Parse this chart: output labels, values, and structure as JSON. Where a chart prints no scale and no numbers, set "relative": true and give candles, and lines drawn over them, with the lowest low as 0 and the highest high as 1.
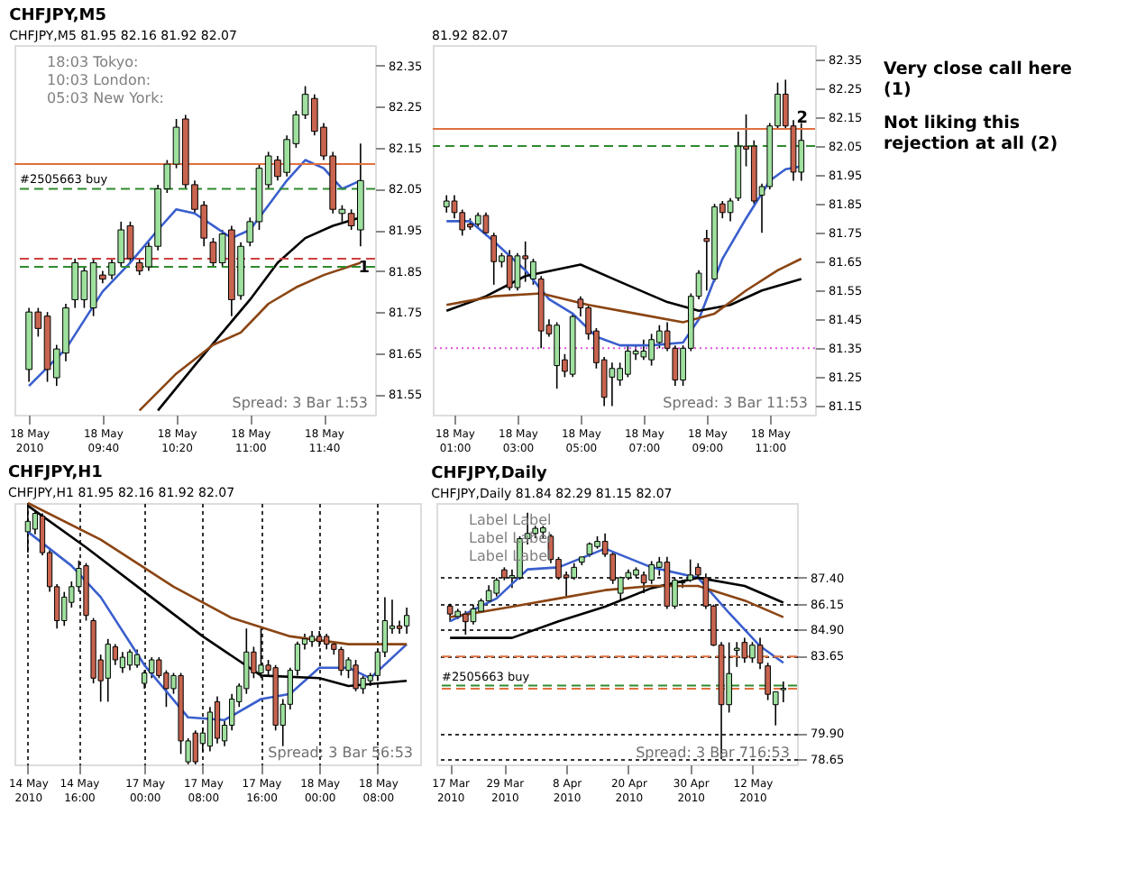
{
  "chart_data": [
    {
      "type": "candlestick",
      "title": "CHFJPY,M5",
      "subtitle": "CHFJPY,M5 81.95 82.16 81.92 82.07",
      "categories": [
        "18 May 2010",
        null,
        null,
        null,
        null,
        null,
        null,
        null,
        "18 May 09:40",
        null,
        null,
        null,
        null,
        null,
        null,
        null,
        "18 May 10:20",
        null,
        null,
        null,
        null,
        null,
        null,
        null,
        "18 May 11:00",
        null,
        null,
        null,
        null,
        null,
        null,
        null,
        "18 May 11:40",
        null,
        null,
        null,
        null
      ],
      "ohlc": [
        [
          81.61,
          81.76,
          81.58,
          81.75
        ],
        [
          81.75,
          81.76,
          81.69,
          81.71
        ],
        [
          81.74,
          81.75,
          81.58,
          81.61
        ],
        [
          81.59,
          81.67,
          81.57,
          81.66
        ],
        [
          81.65,
          81.77,
          81.63,
          81.76
        ],
        [
          81.78,
          81.88,
          81.76,
          81.87
        ],
        [
          81.78,
          81.86,
          81.76,
          81.85
        ],
        [
          81.76,
          81.88,
          81.74,
          81.87
        ],
        [
          81.84,
          81.85,
          81.82,
          81.83
        ],
        [
          81.84,
          81.88,
          81.83,
          81.87
        ],
        [
          81.87,
          81.97,
          81.86,
          81.95
        ],
        [
          81.96,
          81.97,
          81.87,
          81.88
        ],
        [
          81.87,
          81.88,
          81.84,
          81.85
        ],
        [
          81.86,
          81.92,
          81.85,
          81.91
        ],
        [
          81.91,
          82.06,
          81.9,
          82.05
        ],
        [
          82.05,
          82.12,
          82.04,
          82.11
        ],
        [
          82.11,
          82.22,
          82.1,
          82.2
        ],
        [
          82.22,
          82.23,
          82.05,
          82.06
        ],
        [
          82.06,
          82.07,
          81.99,
          82.0
        ],
        [
          82.01,
          82.02,
          81.91,
          81.93
        ],
        [
          81.92,
          81.93,
          81.86,
          81.87
        ],
        [
          81.87,
          81.95,
          81.86,
          81.94
        ],
        [
          81.95,
          81.96,
          81.74,
          81.78
        ],
        [
          81.79,
          81.92,
          81.78,
          81.91
        ],
        [
          81.92,
          81.98,
          81.91,
          81.97
        ],
        [
          81.97,
          82.11,
          81.95,
          82.1
        ],
        [
          82.06,
          82.14,
          82.05,
          82.13
        ],
        [
          82.12,
          82.13,
          82.07,
          82.08
        ],
        [
          82.09,
          82.18,
          82.08,
          82.17
        ],
        [
          82.16,
          82.24,
          82.15,
          82.23
        ],
        [
          82.23,
          82.3,
          82.22,
          82.28
        ],
        [
          82.27,
          82.28,
          82.18,
          82.19
        ],
        [
          82.2,
          82.21,
          82.12,
          82.13
        ],
        [
          82.13,
          82.14,
          81.99,
          82.0
        ],
        [
          81.99,
          82.01,
          81.97,
          82.0
        ],
        [
          81.99,
          82.0,
          81.95,
          81.96
        ],
        [
          81.95,
          82.16,
          81.91,
          82.07
        ]
      ],
      "series": [
        {
          "type": "line",
          "color": "#3a5fcd",
          "values": [
            81.57,
            null,
            null,
            null,
            81.66,
            null,
            null,
            null,
            81.8,
            null,
            null,
            81.87,
            null,
            null,
            81.95,
            null,
            82.0,
            null,
            81.99,
            null,
            81.96,
            null,
            81.93,
            null,
            81.95,
            null,
            82.01,
            null,
            82.07,
            null,
            82.12,
            null,
            82.1,
            null,
            82.05,
            null,
            82.07
          ]
        },
        {
          "type": "line",
          "color": "#000000",
          "values": [
            null,
            null,
            null,
            null,
            null,
            null,
            null,
            null,
            null,
            null,
            null,
            null,
            null,
            null,
            81.51,
            null,
            null,
            null,
            81.62,
            null,
            null,
            81.7,
            null,
            null,
            81.78,
            null,
            null,
            81.87,
            null,
            null,
            81.93,
            null,
            null,
            81.96,
            null,
            null,
            81.98
          ]
        },
        {
          "type": "line",
          "color": "#8b4513",
          "values": [
            null,
            null,
            null,
            null,
            null,
            null,
            null,
            null,
            null,
            null,
            null,
            null,
            81.51,
            null,
            null,
            null,
            81.6,
            null,
            null,
            null,
            81.67,
            null,
            null,
            81.7,
            null,
            null,
            81.77,
            null,
            null,
            81.81,
            null,
            null,
            81.84,
            null,
            null,
            null,
            81.87
          ]
        }
      ],
      "ylim": [
        81.5,
        82.4
      ],
      "yticks": [
        81.55,
        81.65,
        81.75,
        81.85,
        81.95,
        82.05,
        82.15,
        82.25,
        82.35
      ],
      "ref_lines": [
        {
          "axis": "y",
          "value": 82.11,
          "color": "#e07040",
          "line_style": "solid"
        },
        {
          "axis": "y",
          "value": 82.05,
          "label": "#2505663 buy",
          "color": "#2e8b2e",
          "line_style": "dashed"
        },
        {
          "axis": "y",
          "value": 81.88,
          "color": "#d04040",
          "line_style": "dashed"
        },
        {
          "axis": "y",
          "value": 81.86,
          "color": "#2e8b2e",
          "line_style": "dashed"
        }
      ],
      "annotations": [
        "18:03 Tokyo:",
        "10:03 London:",
        "05:03 New York:",
        {
          "text": "1",
          "y": 81.86
        },
        "Spread: 3   Bar  1:53"
      ]
    },
    {
      "type": "candlestick",
      "subtitle": "81.92 82.07",
      "categories": [
        null,
        "18 May 01:00",
        null,
        null,
        null,
        null,
        null,
        null,
        null,
        "18 May 03:00",
        null,
        null,
        null,
        null,
        null,
        null,
        null,
        "18 May 05:00",
        null,
        null,
        null,
        null,
        null,
        null,
        null,
        "18 May 07:00",
        null,
        null,
        null,
        null,
        null,
        null,
        null,
        "18 May 09:00",
        null,
        null,
        null,
        null,
        null,
        null,
        null,
        "18 May 11:00",
        null,
        null,
        null,
        null
      ],
      "ohlc": [
        [
          81.84,
          81.88,
          81.82,
          81.86
        ],
        [
          81.86,
          81.88,
          81.8,
          81.82
        ],
        [
          81.82,
          81.83,
          81.74,
          81.76
        ],
        [
          81.78,
          81.8,
          81.76,
          81.77
        ],
        [
          81.78,
          81.82,
          81.77,
          81.81
        ],
        [
          81.81,
          81.82,
          81.74,
          81.75
        ],
        [
          81.74,
          81.75,
          81.57,
          81.65
        ],
        [
          81.65,
          81.68,
          81.63,
          81.67
        ],
        [
          81.67,
          81.69,
          81.55,
          81.56
        ],
        [
          81.56,
          81.68,
          81.55,
          81.67
        ],
        [
          81.67,
          81.72,
          81.58,
          81.66
        ],
        [
          81.59,
          81.66,
          81.57,
          81.65
        ],
        [
          81.59,
          81.6,
          81.35,
          81.41
        ],
        [
          81.43,
          81.45,
          81.39,
          81.4
        ],
        [
          81.29,
          81.44,
          81.21,
          81.43
        ],
        [
          81.31,
          81.33,
          81.25,
          81.27
        ],
        [
          81.26,
          81.47,
          81.25,
          81.46
        ],
        [
          81.52,
          81.53,
          81.46,
          81.49
        ],
        [
          81.49,
          81.5,
          81.38,
          81.4
        ],
        [
          81.41,
          81.42,
          81.28,
          81.3
        ],
        [
          81.31,
          81.32,
          81.15,
          81.18
        ],
        [
          81.25,
          81.3,
          81.15,
          81.28
        ],
        [
          81.24,
          81.3,
          81.22,
          81.28
        ],
        [
          81.26,
          81.36,
          81.25,
          81.34
        ],
        [
          81.33,
          81.36,
          81.31,
          81.34
        ],
        [
          81.32,
          81.38,
          81.31,
          81.34
        ],
        [
          81.31,
          81.4,
          81.29,
          81.38
        ],
        [
          81.37,
          81.43,
          81.35,
          81.41
        ],
        [
          81.41,
          81.44,
          81.34,
          81.35
        ],
        [
          81.35,
          81.36,
          81.22,
          81.24
        ],
        [
          81.24,
          81.36,
          81.22,
          81.35
        ],
        [
          81.35,
          81.54,
          81.34,
          81.53
        ],
        [
          81.53,
          81.62,
          81.52,
          81.61
        ],
        [
          81.73,
          81.76,
          81.55,
          81.72
        ],
        [
          81.59,
          81.85,
          81.58,
          81.84
        ],
        [
          81.85,
          81.86,
          81.8,
          81.82
        ],
        [
          81.82,
          81.87,
          81.79,
          81.86
        ],
        [
          81.87,
          82.1,
          81.86,
          82.05
        ],
        [
          82.05,
          82.16,
          81.98,
          82.04
        ],
        [
          82.05,
          82.07,
          81.85,
          81.86
        ],
        [
          81.88,
          81.92,
          81.75,
          81.91
        ],
        [
          81.91,
          82.13,
          81.9,
          82.12
        ],
        [
          82.12,
          82.27,
          82.11,
          82.23
        ],
        [
          82.23,
          82.28,
          82.11,
          82.12
        ],
        [
          82.12,
          82.14,
          81.93,
          81.96
        ],
        [
          81.96,
          82.13,
          81.93,
          82.07
        ]
      ],
      "series": [
        {
          "type": "line",
          "color": "#3a5fcd",
          "values": [
            81.79,
            null,
            null,
            81.79,
            null,
            null,
            81.72,
            null,
            null,
            null,
            81.62,
            null,
            null,
            81.52,
            null,
            null,
            81.47,
            null,
            null,
            81.39,
            null,
            null,
            81.36,
            null,
            null,
            null,
            81.36,
            null,
            null,
            null,
            81.37,
            null,
            81.45,
            null,
            null,
            81.66,
            null,
            null,
            81.8,
            null,
            null,
            81.93,
            null,
            81.97,
            null,
            81.98
          ]
        },
        {
          "type": "line",
          "color": "#000000",
          "values": [
            81.48,
            null,
            null,
            null,
            null,
            81.53,
            null,
            null,
            null,
            null,
            81.6,
            null,
            null,
            null,
            null,
            null,
            null,
            81.64,
            null,
            null,
            null,
            null,
            81.58,
            null,
            null,
            null,
            null,
            null,
            81.51,
            null,
            null,
            null,
            81.48,
            null,
            null,
            null,
            81.5,
            null,
            null,
            null,
            81.55,
            null,
            null,
            null,
            null,
            81.59
          ]
        },
        {
          "type": "line",
          "color": "#8b4513",
          "values": [
            81.5,
            null,
            null,
            null,
            null,
            null,
            81.53,
            null,
            null,
            null,
            null,
            null,
            81.54,
            null,
            null,
            null,
            null,
            null,
            81.5,
            null,
            null,
            null,
            null,
            null,
            81.47,
            null,
            null,
            null,
            null,
            null,
            81.44,
            null,
            null,
            null,
            81.47,
            null,
            null,
            null,
            81.55,
            null,
            null,
            null,
            81.62,
            null,
            null,
            81.66
          ]
        }
      ],
      "ylim": [
        81.12,
        82.4
      ],
      "yticks": [
        81.15,
        81.25,
        81.35,
        81.45,
        81.55,
        81.65,
        81.75,
        81.85,
        81.95,
        82.05,
        82.15,
        82.25,
        82.35
      ],
      "ref_lines": [
        {
          "axis": "y",
          "value": 82.11,
          "color": "#e07040",
          "line_style": "solid"
        },
        {
          "axis": "y",
          "value": 82.05,
          "color": "#2e8b2e",
          "line_style": "dashed"
        },
        {
          "axis": "y",
          "value": 81.35,
          "color": "#e050e0",
          "line_style": "dotted"
        }
      ],
      "annotations": [
        "2",
        "Spread: 3   Bar  11:53",
        "Very close call here (1)",
        "Not liking this rejection at all (2)"
      ]
    },
    {
      "type": "candlestick",
      "title": "CHFJPY,H1",
      "subtitle": "CHFJPY,H1 81.95 82.16 81.92 82.07",
      "relative": true,
      "grid": "x",
      "categories": [
        "14 May 2010",
        null,
        null,
        null,
        null,
        null,
        null,
        "14 May 16:00",
        null,
        null,
        null,
        null,
        null,
        null,
        null,
        null,
        "17 May 00:00",
        null,
        null,
        null,
        null,
        null,
        null,
        null,
        "17 May 08:00",
        null,
        null,
        null,
        null,
        null,
        null,
        null,
        "17 May 16:00",
        null,
        null,
        null,
        null,
        null,
        null,
        null,
        "18 May 00:00",
        null,
        null,
        null,
        null,
        null,
        null,
        null,
        "18 May 08:00",
        null,
        null,
        null,
        null
      ],
      "ohlc": [
        [
          0.89,
          1.0,
          0.81,
          0.93
        ],
        [
          0.9,
          0.97,
          0.88,
          0.96
        ],
        [
          0.95,
          0.96,
          0.8,
          0.81
        ],
        [
          0.81,
          0.82,
          0.66,
          0.68
        ],
        [
          0.68,
          0.69,
          0.52,
          0.55
        ],
        [
          0.55,
          0.66,
          0.53,
          0.64
        ],
        [
          0.62,
          0.7,
          0.6,
          0.68
        ],
        [
          0.68,
          0.78,
          0.66,
          0.75
        ],
        [
          0.76,
          0.77,
          0.55,
          0.57
        ],
        [
          0.55,
          0.56,
          0.31,
          0.33
        ],
        [
          0.4,
          0.42,
          0.24,
          0.32
        ],
        [
          0.33,
          0.48,
          0.24,
          0.46
        ],
        [
          0.45,
          0.46,
          0.38,
          0.4
        ],
        [
          0.37,
          0.43,
          0.35,
          0.41
        ],
        [
          0.38,
          0.44,
          0.36,
          0.43
        ],
        [
          0.38,
          0.44,
          0.37,
          0.42
        ],
        [
          0.31,
          0.36,
          0.29,
          0.35
        ],
        [
          0.35,
          0.41,
          0.33,
          0.4
        ],
        [
          0.4,
          0.41,
          0.33,
          0.34
        ],
        [
          0.35,
          0.36,
          0.22,
          0.29
        ],
        [
          0.29,
          0.35,
          0.27,
          0.34
        ],
        [
          0.34,
          0.35,
          0.04,
          0.09
        ],
        [
          0.01,
          0.1,
          0.0,
          0.09
        ],
        [
          0.12,
          0.13,
          0.0,
          0.01
        ],
        [
          0.08,
          0.14,
          0.05,
          0.12
        ],
        [
          0.07,
          0.22,
          0.05,
          0.2
        ],
        [
          0.24,
          0.26,
          0.08,
          0.1
        ],
        [
          0.09,
          0.17,
          0.07,
          0.15
        ],
        [
          0.15,
          0.27,
          0.13,
          0.25
        ],
        [
          0.24,
          0.31,
          0.22,
          0.3
        ],
        [
          0.29,
          0.52,
          0.27,
          0.43
        ],
        [
          0.43,
          0.45,
          0.33,
          0.35
        ],
        [
          0.35,
          0.52,
          0.33,
          0.38
        ],
        [
          0.38,
          0.4,
          0.34,
          0.36
        ],
        [
          0.37,
          0.38,
          0.13,
          0.15
        ],
        [
          0.15,
          0.25,
          0.07,
          0.23
        ],
        [
          0.23,
          0.37,
          0.21,
          0.36
        ],
        [
          0.36,
          0.47,
          0.34,
          0.46
        ],
        [
          0.46,
          0.5,
          0.44,
          0.48
        ],
        [
          0.47,
          0.51,
          0.45,
          0.49
        ],
        [
          0.49,
          0.51,
          0.45,
          0.47
        ],
        [
          0.49,
          0.5,
          0.44,
          0.46
        ],
        [
          0.46,
          0.47,
          0.42,
          0.44
        ],
        [
          0.44,
          0.45,
          0.34,
          0.36
        ],
        [
          0.36,
          0.41,
          0.33,
          0.4
        ],
        [
          0.38,
          0.4,
          0.28,
          0.29
        ],
        [
          0.29,
          0.34,
          0.27,
          0.33
        ],
        [
          0.32,
          0.35,
          0.3,
          0.34
        ],
        [
          0.34,
          0.44,
          0.32,
          0.43
        ],
        [
          0.43,
          0.64,
          0.41,
          0.55
        ],
        [
          0.52,
          0.63,
          0.5,
          0.53
        ],
        [
          0.53,
          0.55,
          0.5,
          0.52
        ],
        [
          0.53,
          0.6,
          0.5,
          0.57
        ]
      ],
      "series": [
        {
          "type": "line",
          "color": "#3a5fcd",
          "values": [
            0.89,
            null,
            null,
            null,
            null,
            null,
            0.76,
            null,
            null,
            null,
            0.64,
            null,
            null,
            null,
            null,
            null,
            0.38,
            null,
            null,
            null,
            null,
            null,
            0.18,
            null,
            null,
            null,
            null,
            0.17,
            null,
            null,
            null,
            null,
            0.25,
            null,
            null,
            null,
            0.27,
            null,
            null,
            null,
            0.37,
            null,
            null,
            null,
            0.37,
            null,
            null,
            0.33,
            null,
            null,
            null,
            null,
            0.46
          ]
        },
        {
          "type": "line",
          "color": "#000000",
          "values": [
            0.99,
            null,
            null,
            null,
            null,
            null,
            null,
            null,
            0.83,
            null,
            null,
            null,
            null,
            null,
            null,
            null,
            0.66,
            null,
            null,
            null,
            null,
            null,
            null,
            null,
            0.49,
            null,
            null,
            null,
            null,
            null,
            null,
            null,
            0.34,
            null,
            null,
            null,
            null,
            null,
            null,
            null,
            0.33,
            null,
            null,
            null,
            0.3,
            null,
            null,
            null,
            null,
            null,
            null,
            null,
            0.32
          ]
        },
        {
          "type": "line",
          "color": "#8b4513",
          "values": [
            1.0,
            null,
            null,
            null,
            null,
            null,
            null,
            null,
            null,
            null,
            0.86,
            null,
            null,
            null,
            null,
            null,
            null,
            null,
            null,
            null,
            0.68,
            null,
            null,
            null,
            null,
            null,
            null,
            null,
            0.56,
            null,
            null,
            null,
            null,
            null,
            null,
            null,
            0.49,
            null,
            null,
            null,
            null,
            null,
            null,
            null,
            0.46,
            null,
            null,
            null,
            null,
            null,
            null,
            null,
            0.46
          ]
        }
      ],
      "annotations": [
        "Spread: 3   Bar  56:53"
      ]
    },
    {
      "type": "candlestick",
      "title": "CHFJPY,Daily",
      "subtitle": "CHFJPY,Daily 81.84 82.29 81.15 82.07",
      "grid": "y",
      "categories": [
        "17 Mar 2010",
        null,
        null,
        null,
        null,
        null,
        null,
        "29 Mar 2010",
        null,
        null,
        null,
        null,
        null,
        null,
        null,
        "8 Apr 2010",
        null,
        null,
        null,
        null,
        null,
        null,
        null,
        "20 Apr 2010",
        null,
        null,
        null,
        null,
        null,
        null,
        null,
        "30 Apr 2010",
        null,
        null,
        null,
        null,
        null,
        null,
        null,
        "12 May 2010",
        null,
        null,
        null,
        null
      ],
      "ohlc": [
        [
          86.03,
          86.15,
          85.28,
          85.65
        ],
        [
          85.53,
          85.9,
          85.4,
          85.78
        ],
        [
          85.65,
          85.8,
          84.65,
          85.28
        ],
        [
          85.28,
          86.1,
          85.15,
          85.9
        ],
        [
          85.78,
          86.4,
          85.7,
          86.28
        ],
        [
          86.28,
          87.03,
          86.2,
          86.78
        ],
        [
          86.65,
          87.4,
          86.5,
          87.28
        ],
        [
          87.78,
          87.9,
          87.28,
          87.4
        ],
        [
          87.4,
          87.8,
          86.9,
          87.5
        ],
        [
          87.4,
          89.4,
          87.3,
          89.28
        ],
        [
          89.28,
          90.53,
          89.0,
          89.53
        ],
        [
          89.53,
          89.9,
          89.3,
          89.78
        ],
        [
          89.6,
          89.9,
          89.3,
          89.8
        ],
        [
          89.4,
          89.5,
          88.1,
          88.28
        ],
        [
          88.28,
          88.4,
          87.3,
          87.4
        ],
        [
          87.53,
          87.7,
          86.53,
          87.4
        ],
        [
          87.4,
          88.1,
          87.3,
          87.9
        ],
        [
          88.15,
          88.4,
          88.0,
          88.4
        ],
        [
          88.53,
          89.1,
          88.4,
          89.03
        ],
        [
          88.9,
          89.4,
          88.8,
          89.15
        ],
        [
          89.15,
          89.53,
          88.4,
          88.53
        ],
        [
          88.53,
          88.65,
          87.1,
          87.28
        ],
        [
          86.65,
          87.45,
          86.28,
          87.4
        ],
        [
          87.4,
          87.8,
          87.3,
          87.65
        ],
        [
          87.53,
          87.9,
          87.4,
          87.78
        ],
        [
          87.53,
          87.7,
          86.65,
          87.15
        ],
        [
          87.28,
          88.2,
          87.1,
          88.03
        ],
        [
          87.9,
          88.4,
          87.5,
          88.15
        ],
        [
          88.15,
          88.4,
          85.9,
          86.03
        ],
        [
          86.03,
          87.4,
          85.9,
          87.28
        ],
        [
          87.15,
          87.3,
          86.9,
          87.2
        ],
        [
          87.28,
          88.28,
          87.2,
          87.53
        ],
        [
          87.9,
          88.1,
          87.4,
          87.53
        ],
        [
          87.4,
          87.6,
          85.9,
          86.03
        ],
        [
          86.03,
          86.1,
          84.1,
          84.15
        ],
        [
          84.15,
          84.3,
          78.65,
          81.28
        ],
        [
          81.28,
          84.28,
          80.9,
          82.78
        ],
        [
          83.9,
          84.3,
          83.1,
          84.0
        ],
        [
          84.28,
          84.5,
          83.3,
          83.53
        ],
        [
          83.53,
          84.3,
          83.3,
          84.15
        ],
        [
          84.15,
          84.5,
          83.0,
          83.28
        ],
        [
          83.15,
          83.3,
          81.5,
          81.78
        ],
        [
          81.28,
          81.9,
          80.28,
          81.9
        ],
        [
          82.0,
          82.4,
          81.4,
          82.07
        ]
      ],
      "series": [
        {
          "type": "line",
          "color": "#3a5fcd",
          "values": [
            85.3,
            null,
            null,
            null,
            null,
            null,
            86.4,
            null,
            null,
            null,
            87.8,
            null,
            null,
            null,
            87.9,
            null,
            null,
            null,
            null,
            null,
            88.8,
            null,
            null,
            null,
            null,
            null,
            87.9,
            null,
            null,
            null,
            null,
            null,
            87.4,
            null,
            null,
            null,
            85.7,
            null,
            null,
            null,
            84.1,
            null,
            null,
            83.3
          ]
        },
        {
          "type": "line",
          "color": "#000000",
          "values": [
            84.5,
            null,
            null,
            null,
            null,
            null,
            null,
            null,
            84.5,
            null,
            null,
            null,
            null,
            null,
            85.3,
            null,
            null,
            null,
            null,
            null,
            86.0,
            null,
            null,
            null,
            null,
            null,
            86.9,
            null,
            null,
            null,
            null,
            null,
            87.4,
            null,
            null,
            null,
            null,
            null,
            87.0,
            null,
            null,
            null,
            null,
            86.2
          ]
        },
        {
          "type": "line",
          "color": "#8b4513",
          "values": [
            85.5,
            null,
            null,
            null,
            null,
            null,
            null,
            null,
            86.0,
            null,
            null,
            null,
            null,
            null,
            86.4,
            null,
            null,
            null,
            null,
            null,
            86.8,
            null,
            null,
            null,
            null,
            null,
            87.0,
            null,
            null,
            null,
            null,
            null,
            87.0,
            null,
            null,
            null,
            null,
            null,
            86.3,
            null,
            null,
            null,
            null,
            85.5
          ]
        }
      ],
      "ylim": [
        78.4,
        91.0
      ],
      "yticks": [
        78.65,
        {
          "value": 79.9,
          "label": "79.90"
        },
        83.65,
        {
          "value": 84.9,
          "label": "84.90"
        },
        86.15,
        {
          "value": 87.4,
          "label": "87.40"
        }
      ],
      "ref_lines": [
        {
          "axis": "y",
          "value": 83.6,
          "color": "#e07040",
          "line_style": "dashed"
        },
        {
          "axis": "y",
          "value": 82.2,
          "label": "#2505663 buy",
          "color": "#2e8b2e",
          "line_style": "dashed"
        },
        {
          "axis": "y",
          "value": 82.05,
          "color": "#e07040",
          "line_style": "dashed"
        }
      ],
      "annotations": [
        "Label Label",
        "Label Label",
        "Label Label",
        "Spread: 3 Bar  716:53"
      ]
    }
  ]
}
